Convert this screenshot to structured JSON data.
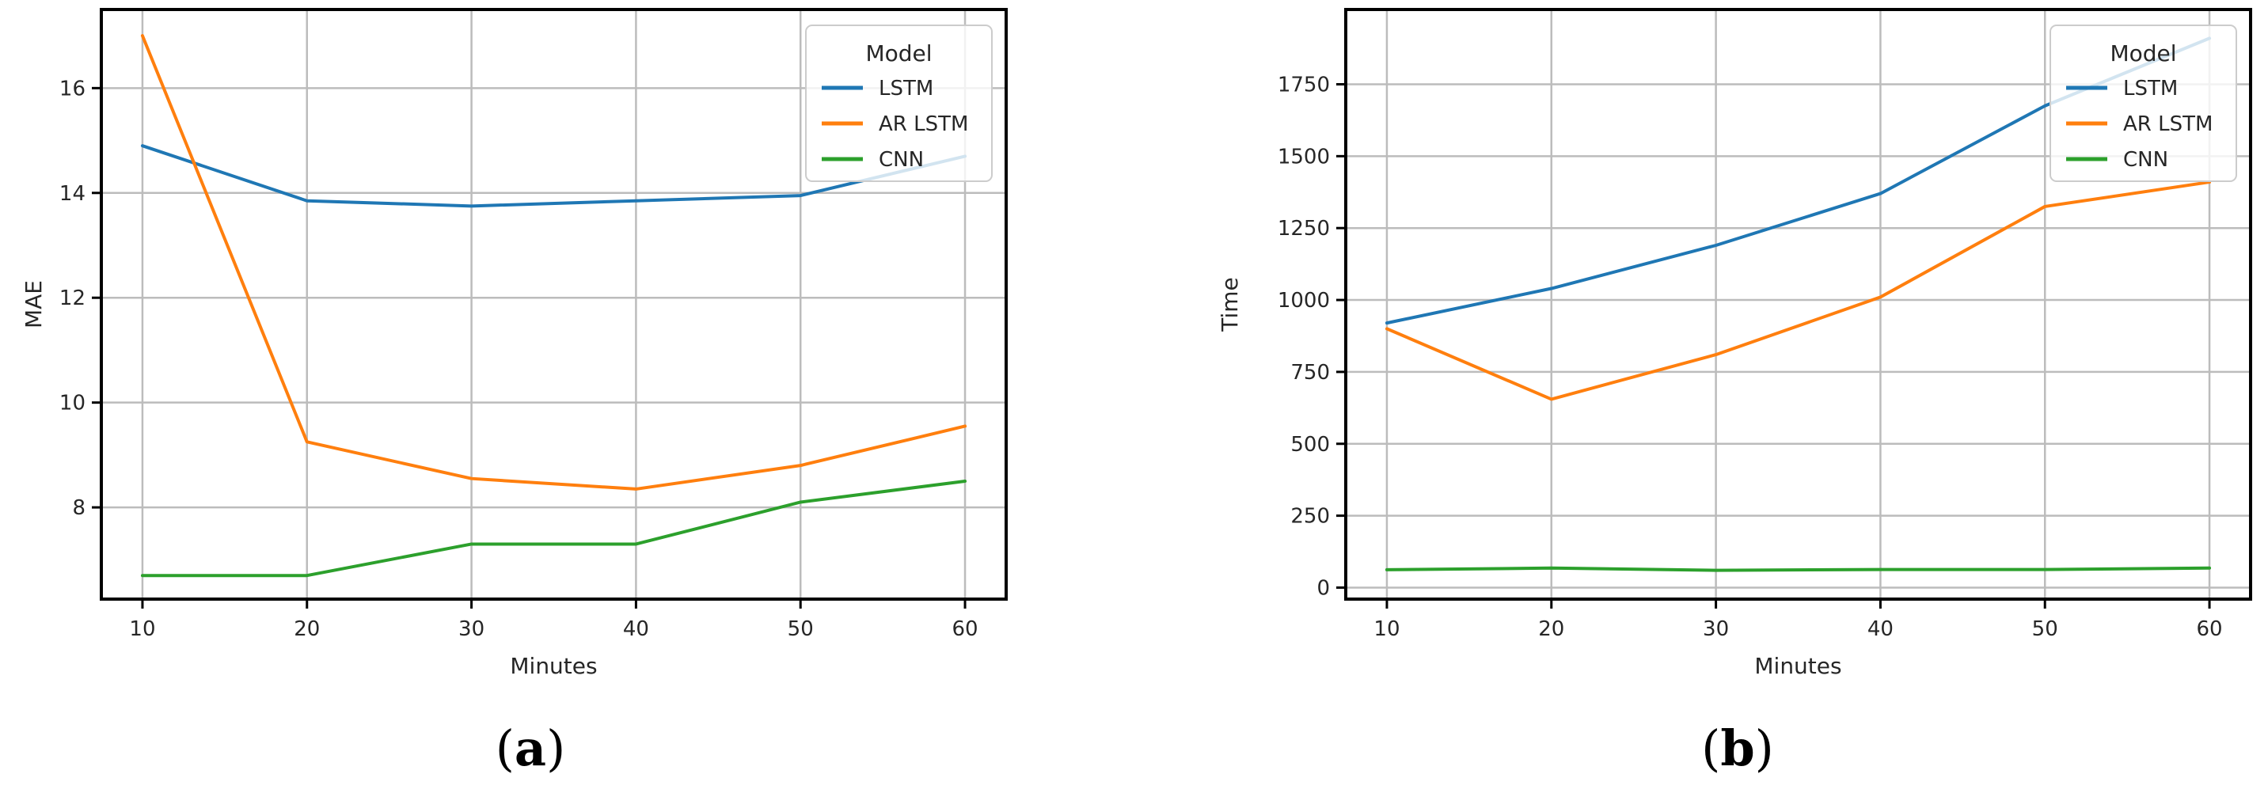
{
  "figure": {
    "background": "#ffffff",
    "text_color": "#262626",
    "grid_color": "#bcbcbc",
    "spine_color": "#000000"
  },
  "chart_data": [
    {
      "id": "mae-vs-minutes",
      "type": "line",
      "title": "",
      "xlabel": "Minutes",
      "ylabel": "MAE",
      "x": [
        10,
        20,
        30,
        40,
        50,
        60
      ],
      "xticks": [
        10,
        20,
        30,
        40,
        50,
        60
      ],
      "yticks": [
        8,
        10,
        12,
        14,
        16
      ],
      "xlim": [
        7.5,
        62.5
      ],
      "ylim": [
        6.25,
        17.5
      ],
      "grid": true,
      "legend": {
        "title": "Model",
        "position": "top-right"
      },
      "series": [
        {
          "name": "LSTM",
          "color": "#1f77b4",
          "values": [
            14.9,
            13.85,
            13.75,
            13.85,
            13.95,
            14.7
          ]
        },
        {
          "name": "AR LSTM",
          "color": "#ff7f0e",
          "values": [
            17.0,
            9.25,
            8.55,
            8.35,
            8.8,
            9.55
          ]
        },
        {
          "name": "CNN",
          "color": "#2ca02c",
          "values": [
            6.7,
            6.7,
            7.3,
            7.3,
            8.1,
            8.5
          ]
        }
      ],
      "caption": {
        "open": "(",
        "letter": "a",
        "close": ")"
      }
    },
    {
      "id": "time-vs-minutes",
      "type": "line",
      "title": "",
      "xlabel": "Minutes",
      "ylabel": "Time",
      "x": [
        10,
        20,
        30,
        40,
        50,
        60
      ],
      "xticks": [
        10,
        20,
        30,
        40,
        50,
        60
      ],
      "yticks": [
        0,
        250,
        500,
        750,
        1000,
        1250,
        1500,
        1750
      ],
      "xlim": [
        7.5,
        62.5
      ],
      "ylim": [
        -40,
        2010
      ],
      "grid": true,
      "legend": {
        "title": "Model",
        "position": "top-right"
      },
      "series": [
        {
          "name": "LSTM",
          "color": "#1f77b4",
          "values": [
            920,
            1040,
            1190,
            1370,
            1675,
            1910
          ]
        },
        {
          "name": "AR LSTM",
          "color": "#ff7f0e",
          "values": [
            900,
            655,
            810,
            1010,
            1325,
            1410
          ]
        },
        {
          "name": "CNN",
          "color": "#2ca02c",
          "values": [
            62,
            68,
            60,
            63,
            63,
            68
          ]
        }
      ],
      "caption": {
        "open": "(",
        "letter": "b",
        "close": ")"
      }
    }
  ]
}
